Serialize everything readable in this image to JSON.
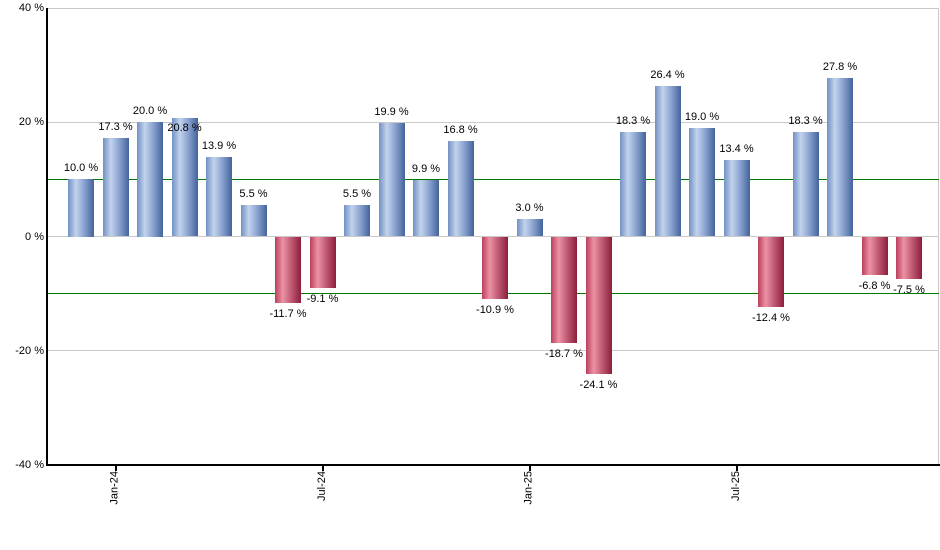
{
  "chart_data": {
    "type": "bar",
    "title": "",
    "unit": "%",
    "values": [
      10.0,
      17.3,
      20.0,
      20.8,
      13.9,
      5.5,
      -11.7,
      -9.1,
      5.5,
      19.9,
      9.9,
      16.8,
      -10.9,
      3.0,
      -18.7,
      -24.1,
      18.3,
      26.4,
      19.0,
      13.4,
      -12.4,
      18.3,
      27.8,
      -6.8,
      -7.5
    ],
    "value_labels": [
      "10.0 %",
      "17.3 %",
      "20.0 %",
      "20.8 %",
      "13.9 %",
      "5.5 %",
      "-11.7 %",
      "-9.1 %",
      "5.5 %",
      "19.9 %",
      "9.9 %",
      "16.8 %",
      "-10.9 %",
      "3.0 %",
      "-18.7 %",
      "-24.1 %",
      "18.3 %",
      "26.4 %",
      "19.0 %",
      "13.4 %",
      "-12.4 %",
      "18.3 %",
      "27.8 %",
      "-6.8 %",
      "-7.5 %"
    ],
    "x_ticks": [
      {
        "bar_index": 1,
        "label": "Jan-24"
      },
      {
        "bar_index": 7,
        "label": "Jul-24"
      },
      {
        "bar_index": 13,
        "label": "Jan-25"
      },
      {
        "bar_index": 19,
        "label": "Jul-25"
      }
    ],
    "y_ticks": [
      {
        "value": 40,
        "label": "40 %"
      },
      {
        "value": 20,
        "label": "20 %"
      },
      {
        "value": 0,
        "label": "0 %"
      },
      {
        "value": -20,
        "label": "-20 %"
      },
      {
        "value": -40,
        "label": "-40 %"
      }
    ],
    "ylim": [
      -40,
      40
    ],
    "gridlines_at": [
      40,
      20,
      0,
      -20
    ],
    "reference_lines_at": [
      10,
      -10
    ],
    "legend": "none",
    "colors": {
      "positive_bar_gradient": [
        "#7190c3",
        "#c2d3ec",
        "#8aa3d0",
        "#44639b"
      ],
      "negative_bar_gradient": [
        "#bb3f5e",
        "#ec92a4",
        "#c05a74",
        "#8c1e3b"
      ],
      "reference_line": "#007a00",
      "gridline": "#c9c9c9",
      "axis": "#000000",
      "label_text": "#000000",
      "background": "#ffffff"
    }
  }
}
